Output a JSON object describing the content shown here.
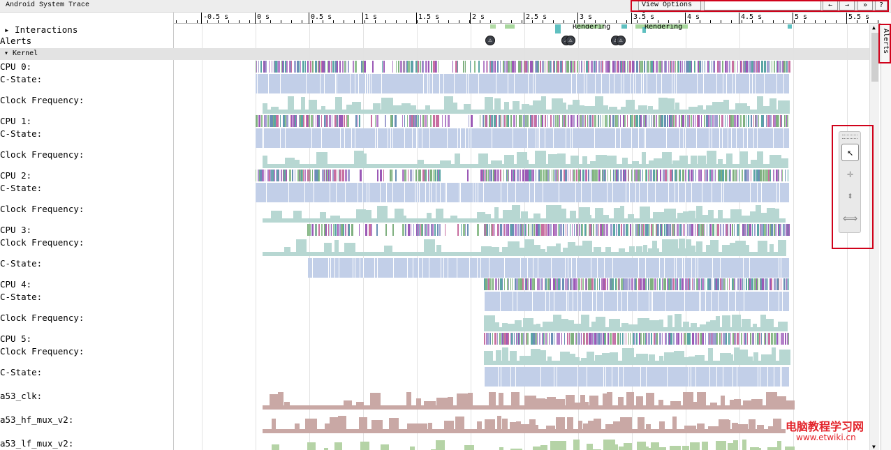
{
  "window": {
    "title": "Android System Trace"
  },
  "toolbar": {
    "view_options": "View Options ▾",
    "search_value": "",
    "prev": "←",
    "next": "→",
    "expand": "»",
    "help": "?"
  },
  "ruler": {
    "ticks": [
      "-0.5 s",
      "0 s",
      "0.5 s",
      "1 s",
      "1.5 s",
      "2 s",
      "2.5 s",
      "3 s",
      "3.5 s",
      "4 s",
      "4.5 s",
      "5 s",
      "5.5 s"
    ]
  },
  "tracks": {
    "interactions": "▸ Interactions",
    "alerts": "Alerts",
    "kernel": "▾ Kernel",
    "rows": [
      {
        "label": "CPU 0:",
        "kind": "cpu"
      },
      {
        "label": "C-State:",
        "kind": "cstate"
      },
      {
        "label": "Clock Frequency:",
        "kind": "freq"
      },
      {
        "label": "CPU 1:",
        "kind": "cpu"
      },
      {
        "label": "C-State:",
        "kind": "cstate"
      },
      {
        "label": "Clock Frequency:",
        "kind": "freq"
      },
      {
        "label": "CPU 2:",
        "kind": "cpu"
      },
      {
        "label": "C-State:",
        "kind": "cstate"
      },
      {
        "label": "Clock Frequency:",
        "kind": "freq"
      },
      {
        "label": "CPU 3:",
        "kind": "cpu"
      },
      {
        "label": "Clock Frequency:",
        "kind": "freq"
      },
      {
        "label": "C-State:",
        "kind": "cstate"
      },
      {
        "label": "CPU 4:",
        "kind": "cpu"
      },
      {
        "label": "C-State:",
        "kind": "cstate"
      },
      {
        "label": "Clock Frequency:",
        "kind": "freq"
      },
      {
        "label": "CPU 5:",
        "kind": "cpu"
      },
      {
        "label": "Clock Frequency:",
        "kind": "freq"
      },
      {
        "label": "C-State:",
        "kind": "cstate"
      },
      {
        "label": "a53_clk:",
        "kind": "clk"
      },
      {
        "label": "a53_hf_mux_v2:",
        "kind": "clk"
      },
      {
        "label": "a53_lf_mux_v2:",
        "kind": "clkgreen"
      }
    ]
  },
  "interactions": {
    "rendering_labels": [
      "Rendering",
      "Rendering"
    ]
  },
  "alerts_panel": {
    "label": "Alerts"
  },
  "alert_glyph": "⚠",
  "mouse_mode": {
    "select": "↖",
    "pan": "✛",
    "zoom": "⬍",
    "timing": "⟺"
  },
  "scroll": {
    "up": "▲",
    "down": "▼"
  },
  "colors": {
    "cpu_a": "#9b59b6",
    "cpu_b": "#7fb07f",
    "cpu_c": "#5aa5a5",
    "cstate": "#c2cfe8",
    "freq": "#b7d7d2",
    "clk": "#c9a8a5",
    "clk_green": "#b5d3a6",
    "rendering": "#a8d79d",
    "highlight": "#d0021b"
  },
  "watermark": {
    "line1": "电脑教程学习网",
    "line2": "www.etwiki.cn"
  }
}
